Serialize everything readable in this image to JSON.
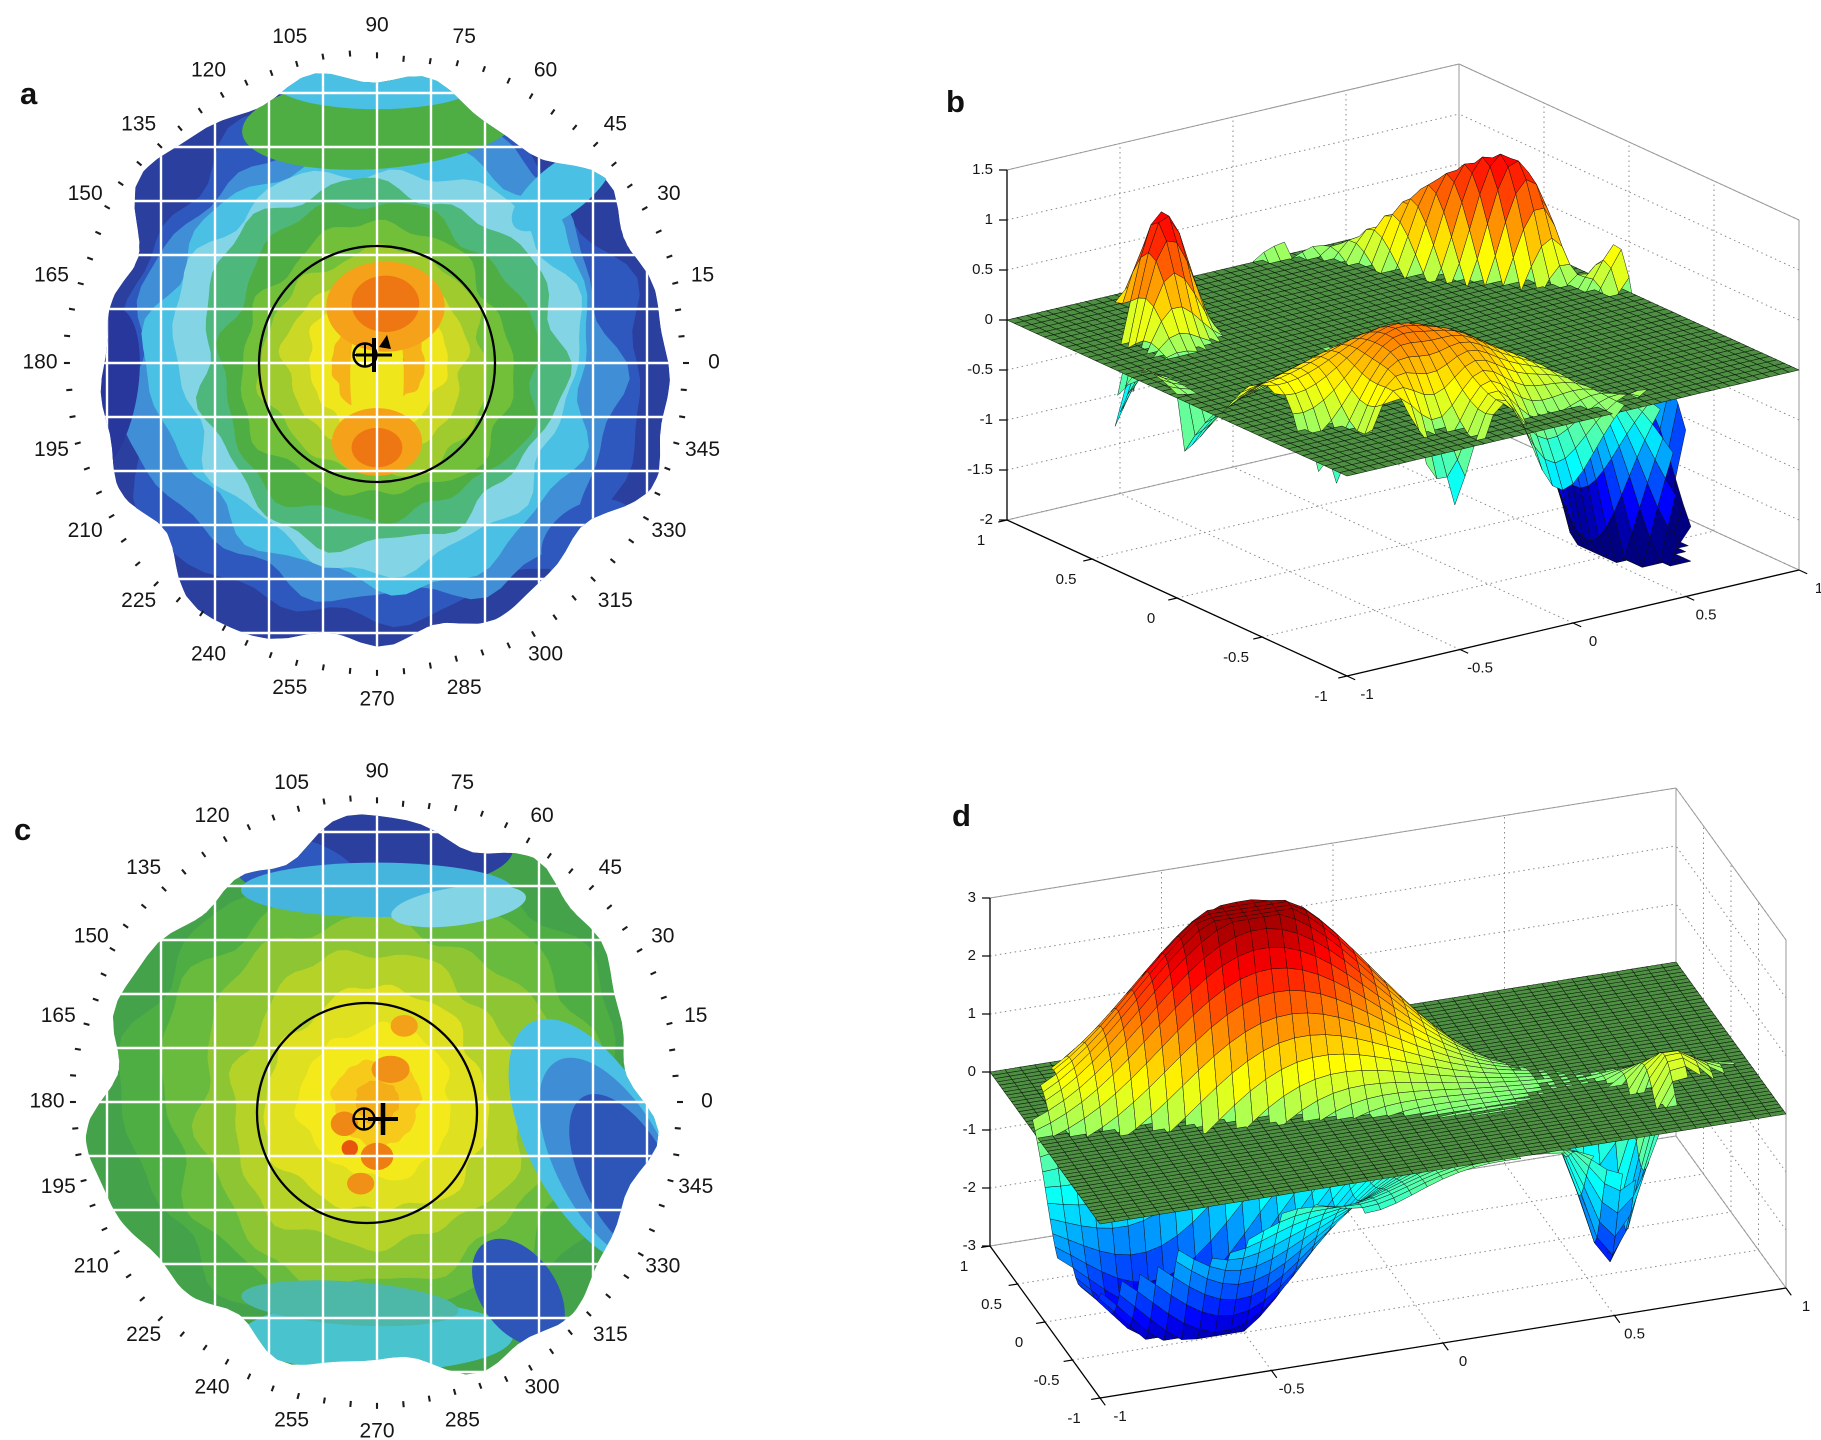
{
  "figure": {
    "description": "Four-panel figure: two corneal topography polar maps (a, c) and two 3D mesh surface plots with reference plane (b, d)",
    "background": "#ffffff"
  },
  "panels": [
    {
      "id": "a",
      "label": "a"
    },
    {
      "id": "b",
      "label": "b"
    },
    {
      "id": "c",
      "label": "c"
    },
    {
      "id": "d",
      "label": "d"
    }
  ],
  "chart_data": [
    {
      "panel": "a",
      "type": "heatmap",
      "subtype": "corneal-topography-polar-map",
      "angle_labels_deg": [
        0,
        15,
        30,
        45,
        60,
        75,
        90,
        105,
        120,
        135,
        150,
        165,
        180,
        195,
        210,
        225,
        240,
        255,
        270,
        285,
        300,
        315,
        330,
        345
      ],
      "angle_minor_tick_step_deg": 5,
      "grid_color": "#ffffff",
      "overlay_circle_color": "#000000",
      "markers": [
        "circle-cross",
        "vertical-bar",
        "triangle"
      ],
      "zone_radius_fractions": [
        1.0,
        0.93,
        0.86,
        0.78,
        0.71,
        0.64,
        0.56,
        0.48,
        0.4,
        0.32,
        0.245,
        0.165,
        0.09
      ],
      "zone_colors_outer_to_inner": [
        "#2b3f9f",
        "#2e58bd",
        "#3f8ed6",
        "#49c0e4",
        "#83d4e4",
        "#4db77c",
        "#4fae43",
        "#72c039",
        "#9fcb2f",
        "#ccd826",
        "#f0e61c",
        "#f5b219",
        "#ee7713"
      ],
      "patches": [
        {
          "x": -0.97,
          "y": 0.1,
          "rx": 0.12,
          "ry": 0.3,
          "rot": 10,
          "color": "#27379b"
        },
        {
          "x": 0.75,
          "y": 0.62,
          "rx": 0.18,
          "ry": 0.12,
          "rot": -30,
          "color": "#2e58bd"
        },
        {
          "x": 0.02,
          "y": -0.86,
          "rx": 0.5,
          "ry": 0.17,
          "rot": -5,
          "color": "#4fae43"
        },
        {
          "x": 0.0,
          "y": -0.99,
          "rx": 0.36,
          "ry": 0.09,
          "rot": 0,
          "color": "#49c0e4"
        },
        {
          "x": 0.66,
          "y": -0.62,
          "rx": 0.22,
          "ry": 0.09,
          "rot": -38,
          "color": "#49c0e4"
        },
        {
          "x": 0.0,
          "y": 0.05,
          "rx": 0.095,
          "ry": 0.32,
          "rot": 0,
          "color": "#f0e61c"
        },
        {
          "x": 0.03,
          "y": -0.2,
          "rx": 0.21,
          "ry": 0.16,
          "rot": 0,
          "color": "#f5a119"
        },
        {
          "x": 0.03,
          "y": -0.21,
          "rx": 0.12,
          "ry": 0.1,
          "rot": 0,
          "color": "#ee7713"
        },
        {
          "x": 0.0,
          "y": 0.28,
          "rx": 0.16,
          "ry": 0.12,
          "rot": 0,
          "color": "#f5a119"
        },
        {
          "x": 0.0,
          "y": 0.3,
          "rx": 0.09,
          "ry": 0.07,
          "rot": 0,
          "color": "#ee7713"
        }
      ]
    },
    {
      "panel": "b",
      "type": "surface",
      "subtype": "3d-mesh-surface-with-reference-plane",
      "x_range": [
        -1,
        1
      ],
      "y_range": [
        -1,
        1
      ],
      "z_range": [
        -2,
        1.5
      ],
      "x_ticks": [
        -1,
        -0.5,
        0,
        0.5,
        1
      ],
      "y_ticks": [
        1,
        0.5,
        0,
        -0.5,
        -1
      ],
      "z_ticks": [
        1.5,
        1,
        0.5,
        0,
        -0.5,
        -1,
        -1.5,
        -2
      ],
      "reference_plane_z": 0,
      "plane_color": "#4e8f43",
      "colormap": "jet",
      "color_range": [
        -1.5,
        1.5
      ],
      "surface_model": {
        "domain": "unit-disk",
        "rim_droop": -0.38,
        "rim_jag": {
          "amp": 0.45,
          "freq": 10.5,
          "phase": 0.8
        },
        "gaussians": [
          [
            1.5,
            0.7,
            0.54,
            0.38,
            0.1,
            2.23
          ],
          [
            1.35,
            -0.59,
            0.62,
            0.18,
            0.09,
            3.9
          ],
          [
            0.85,
            -0.42,
            -0.48,
            0.42,
            0.26,
            -0.5
          ],
          [
            -0.55,
            0.5,
            0.15,
            0.3,
            0.22,
            0.8
          ],
          [
            -0.5,
            -0.05,
            0.72,
            0.35,
            0.15,
            0.0
          ],
          [
            -0.3,
            -0.6,
            -0.1,
            0.22,
            0.2,
            0.0
          ],
          [
            -3.2,
            0.63,
            -0.48,
            0.16,
            0.22,
            0.0
          ]
        ]
      }
    },
    {
      "panel": "c",
      "type": "heatmap",
      "subtype": "corneal-topography-polar-map",
      "angle_labels_deg": [
        0,
        15,
        30,
        45,
        60,
        75,
        90,
        105,
        120,
        135,
        150,
        165,
        180,
        195,
        210,
        225,
        240,
        255,
        270,
        285,
        300,
        315,
        330,
        345
      ],
      "angle_minor_tick_step_deg": 5,
      "grid_color": "#ffffff",
      "overlay_circle_color": "#000000",
      "markers": [
        "circle-cross",
        "bold-plus"
      ],
      "zone_radius_fractions": [
        1.0,
        0.9,
        0.79,
        0.67,
        0.54,
        0.41,
        0.28,
        0.16,
        0.08
      ],
      "zone_colors_outer_to_inner": [
        "#44a24b",
        "#4fae43",
        "#68bb3c",
        "#8ec633",
        "#b5d229",
        "#dfe01f",
        "#f4e91b",
        "#f6c91a",
        "#f4ae17"
      ],
      "patches": [
        {
          "x": 0.05,
          "y": -0.93,
          "rx": 0.45,
          "ry": 0.15,
          "rot": 0,
          "color": "#2b3f9f"
        },
        {
          "x": -0.3,
          "y": -0.85,
          "rx": 0.25,
          "ry": 0.12,
          "rot": 15,
          "color": "#2e58bd"
        },
        {
          "x": 0.0,
          "y": -0.78,
          "rx": 0.5,
          "ry": 0.1,
          "rot": 0,
          "color": "#45b5dd"
        },
        {
          "x": 0.3,
          "y": -0.72,
          "rx": 0.25,
          "ry": 0.07,
          "rot": -8,
          "color": "#83d4e4"
        },
        {
          "x": 0.8,
          "y": 0.15,
          "rx": 0.24,
          "ry": 0.5,
          "rot": -28,
          "color": "#49c0e4"
        },
        {
          "x": 0.86,
          "y": 0.22,
          "rx": 0.2,
          "ry": 0.42,
          "rot": -28,
          "color": "#3f8ed5"
        },
        {
          "x": 0.92,
          "y": 0.28,
          "rx": 0.16,
          "ry": 0.34,
          "rot": -28,
          "color": "#2e55b8"
        },
        {
          "x": 0.0,
          "y": 0.86,
          "rx": 0.5,
          "ry": 0.13,
          "rot": 0,
          "color": "#49c4cf"
        },
        {
          "x": -0.1,
          "y": 0.74,
          "rx": 0.4,
          "ry": 0.08,
          "rot": 4,
          "color": "#4db7a8"
        },
        {
          "x": 0.52,
          "y": 0.7,
          "rx": 0.14,
          "ry": 0.22,
          "rot": -35,
          "color": "#2e55b8"
        },
        {
          "x": 0.05,
          "y": -0.12,
          "rx": 0.07,
          "ry": 0.05,
          "rot": 0,
          "color": "#f09016"
        },
        {
          "x": -0.12,
          "y": 0.08,
          "rx": 0.05,
          "ry": 0.045,
          "rot": 0,
          "color": "#ef8814"
        },
        {
          "x": 0.0,
          "y": 0.2,
          "rx": 0.06,
          "ry": 0.05,
          "rot": 0,
          "color": "#ee7d12"
        },
        {
          "x": -0.06,
          "y": 0.3,
          "rx": 0.05,
          "ry": 0.04,
          "rot": 0,
          "color": "#f09016"
        },
        {
          "x": 0.1,
          "y": -0.28,
          "rx": 0.05,
          "ry": 0.04,
          "rot": 0,
          "color": "#f2a118"
        },
        {
          "x": -0.1,
          "y": 0.17,
          "rx": 0.03,
          "ry": 0.03,
          "rot": 0,
          "color": "#e8560e"
        }
      ]
    },
    {
      "panel": "d",
      "type": "surface",
      "subtype": "3d-mesh-surface-with-reference-plane",
      "x_range": [
        -1,
        1
      ],
      "y_range": [
        -1,
        1
      ],
      "z_range": [
        -3,
        3
      ],
      "x_ticks": [
        -1,
        -0.5,
        0,
        0.5,
        1
      ],
      "y_ticks": [
        1,
        0.5,
        0,
        -0.5,
        -1
      ],
      "z_ticks": [
        3,
        2,
        1,
        0,
        -1,
        -2,
        -3
      ],
      "reference_plane_z": 0,
      "plane_color": "#4e8f43",
      "colormap": "jet",
      "color_range": [
        -3.2,
        3.2
      ],
      "surface_model": {
        "domain": "unit-disk",
        "rim_droop": -0.2,
        "rim_jag": {
          "amp": 0.18,
          "freq": 9,
          "phase": 0
        },
        "gaussians": [
          [
            3.3,
            -0.35,
            0.38,
            0.33,
            0.3,
            0.0
          ],
          [
            -3.5,
            -0.62,
            -0.38,
            0.22,
            0.3,
            0.9
          ],
          [
            1.0,
            0.72,
            -0.55,
            0.12,
            0.18,
            0.0
          ],
          [
            -2.8,
            0.55,
            -0.62,
            0.08,
            0.14,
            0.0
          ],
          [
            -0.8,
            0.55,
            0.5,
            0.3,
            0.25,
            0.0
          ]
        ]
      }
    }
  ]
}
